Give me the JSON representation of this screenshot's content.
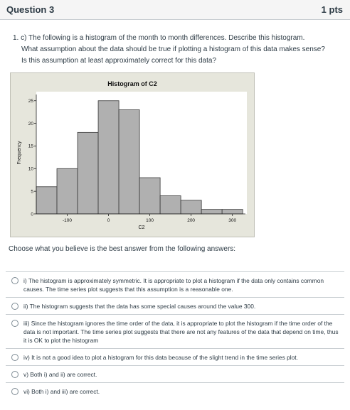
{
  "question": {
    "title": "Question 3",
    "points": "1 pts",
    "text_line1": "1. c) The following is a histogram of the month to month differences. Describe this histogram.",
    "text_line2": "What assumption about the data should be true if plotting a histogram of this data makes sense?",
    "text_line3": "Is this assumption at least approximately correct for this data?",
    "prompt": "Choose what you believe is the best answer from the following answers:"
  },
  "answers": [
    {
      "label": "i) The histogram is approximately symmetric. It is appropriate to plot a histogram if the data only contains common causes. The time series plot suggests that this assumption is a reasonable one."
    },
    {
      "label": "ii) The histogram suggests that the data has some special causes around the value 300."
    },
    {
      "label": "iii) Since the histogram ignores the time order of the data, it is appropriate to plot the histogram if the time order of the data is not important. The time series plot suggests that there are not any features of the data that depend on time, thus it is OK to plot the histogram"
    },
    {
      "label": "iv) It is not a good idea to plot a histogram for this data because of the slight trend in the time series plot."
    },
    {
      "label": "v) Both i) and ii) are correct."
    },
    {
      "label": "vi) Both i) and iii) are correct."
    }
  ],
  "colors": {
    "bar_fill": "#b0b0b0",
    "bar_stroke": "#3a3a3a",
    "plot_bg": "#ffffff",
    "figure_bg": "#e6e6dc"
  },
  "chart_data": {
    "type": "bar",
    "title": "Histogram of C2",
    "xlabel": "C2",
    "ylabel": "Frequency",
    "bin_width": 50,
    "bin_centers": [
      -150,
      -100,
      -50,
      0,
      50,
      100,
      150,
      200,
      250,
      300
    ],
    "values": [
      6,
      10,
      18,
      25,
      23,
      8,
      4,
      3,
      1,
      1
    ],
    "xticks": [
      -100,
      0,
      100,
      200,
      300
    ],
    "xtick_labels": [
      "-100",
      "0",
      "100",
      "200",
      "300"
    ],
    "yticks": [
      0,
      5,
      10,
      15,
      20,
      25
    ],
    "ytick_labels": [
      "0",
      "5",
      "10",
      "15",
      "20",
      "25"
    ],
    "xlim": [
      -175,
      335
    ],
    "ylim": [
      0,
      27
    ],
    "grid": false
  }
}
